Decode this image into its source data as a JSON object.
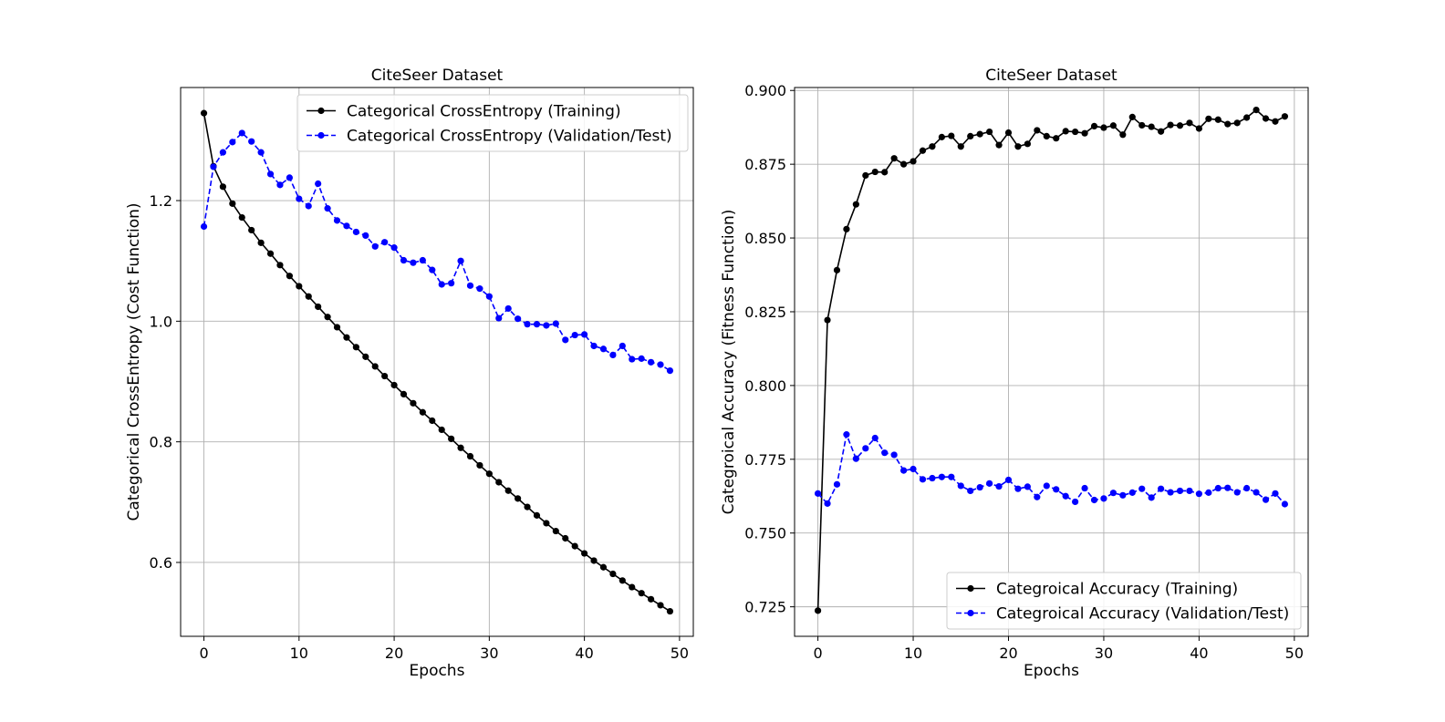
{
  "chart_data": [
    {
      "type": "line",
      "title": "CiteSeer Dataset",
      "xlabel": "Epochs",
      "ylabel": "Categorical CrossEntropy (Cost Function)",
      "xlim": [
        -2.45,
        51.45
      ],
      "ylim": [
        0.4775,
        1.3875
      ],
      "xticks": [
        0,
        10,
        20,
        30,
        40,
        50
      ],
      "yticks": [
        0.6,
        0.8,
        1.0,
        1.2
      ],
      "grid": true,
      "legend_position": "upper right",
      "series": [
        {
          "name": "Categorical CrossEntropy (Training)",
          "color": "#000000",
          "linestyle": "solid",
          "marker": "circle",
          "x": [
            0,
            1,
            2,
            3,
            4,
            5,
            6,
            7,
            8,
            9,
            10,
            11,
            12,
            13,
            14,
            15,
            16,
            17,
            18,
            19,
            20,
            21,
            22,
            23,
            24,
            25,
            26,
            27,
            28,
            29,
            30,
            31,
            32,
            33,
            34,
            35,
            36,
            37,
            38,
            39,
            40,
            41,
            42,
            43,
            44,
            45,
            46,
            47,
            48,
            49
          ],
          "y": [
            1.345,
            1.257,
            1.223,
            1.195,
            1.172,
            1.151,
            1.13,
            1.112,
            1.093,
            1.075,
            1.058,
            1.041,
            1.024,
            1.007,
            0.99,
            0.973,
            0.957,
            0.941,
            0.925,
            0.909,
            0.894,
            0.879,
            0.864,
            0.849,
            0.835,
            0.82,
            0.805,
            0.79,
            0.776,
            0.761,
            0.747,
            0.733,
            0.719,
            0.706,
            0.692,
            0.678,
            0.665,
            0.652,
            0.64,
            0.627,
            0.615,
            0.603,
            0.592,
            0.581,
            0.57,
            0.559,
            0.549,
            0.539,
            0.529,
            0.519
          ]
        },
        {
          "name": "Categorical CrossEntropy (Validation/Test)",
          "color": "#0000ff",
          "linestyle": "dashed",
          "marker": "circle",
          "x": [
            0,
            1,
            2,
            3,
            4,
            5,
            6,
            7,
            8,
            9,
            10,
            11,
            12,
            13,
            14,
            15,
            16,
            17,
            18,
            19,
            20,
            21,
            22,
            23,
            24,
            25,
            26,
            27,
            28,
            29,
            30,
            31,
            32,
            33,
            34,
            35,
            36,
            37,
            38,
            39,
            40,
            41,
            42,
            43,
            44,
            45,
            46,
            47,
            48,
            49
          ],
          "y": [
            1.157,
            1.256,
            1.28,
            1.297,
            1.312,
            1.298,
            1.28,
            1.244,
            1.226,
            1.238,
            1.203,
            1.191,
            1.228,
            1.187,
            1.167,
            1.158,
            1.148,
            1.142,
            1.124,
            1.131,
            1.122,
            1.101,
            1.097,
            1.101,
            1.085,
            1.061,
            1.063,
            1.1,
            1.059,
            1.054,
            1.041,
            1.005,
            1.021,
            1.004,
            0.995,
            0.995,
            0.993,
            0.996,
            0.969,
            0.977,
            0.978,
            0.959,
            0.954,
            0.944,
            0.959,
            0.937,
            0.938,
            0.932,
            0.928,
            0.918
          ]
        }
      ]
    },
    {
      "type": "line",
      "title": "CiteSeer Dataset",
      "xlabel": "Epochs",
      "ylabel": "Categroical Accuracy (Fitness Function)",
      "xlim": [
        -2.45,
        51.45
      ],
      "ylim": [
        0.715,
        0.901
      ],
      "xticks": [
        0,
        10,
        20,
        30,
        40,
        50
      ],
      "yticks": [
        0.725,
        0.75,
        0.775,
        0.8,
        0.825,
        0.85,
        0.875,
        0.9
      ],
      "grid": true,
      "legend_position": "lower right",
      "series": [
        {
          "name": "Categroical Accuracy (Training)",
          "color": "#000000",
          "linestyle": "solid",
          "marker": "circle",
          "x": [
            0,
            1,
            2,
            3,
            4,
            5,
            6,
            7,
            8,
            9,
            10,
            11,
            12,
            13,
            14,
            15,
            16,
            17,
            18,
            19,
            20,
            21,
            22,
            23,
            24,
            25,
            26,
            27,
            28,
            29,
            30,
            31,
            32,
            33,
            34,
            35,
            36,
            37,
            38,
            39,
            40,
            41,
            42,
            43,
            44,
            45,
            46,
            47,
            48,
            49
          ],
          "y": [
            0.7237,
            0.8222,
            0.8391,
            0.853,
            0.8614,
            0.8712,
            0.8724,
            0.8723,
            0.877,
            0.875,
            0.876,
            0.8796,
            0.881,
            0.8842,
            0.8846,
            0.881,
            0.8845,
            0.8852,
            0.886,
            0.8815,
            0.8857,
            0.881,
            0.8819,
            0.8865,
            0.8845,
            0.8838,
            0.8862,
            0.886,
            0.8855,
            0.8879,
            0.8874,
            0.8881,
            0.885,
            0.891,
            0.8882,
            0.8877,
            0.8861,
            0.8883,
            0.8881,
            0.889,
            0.8871,
            0.8904,
            0.8901,
            0.8886,
            0.889,
            0.8908,
            0.8934,
            0.8905,
            0.8895,
            0.8912
          ]
        },
        {
          "name": "Categroical Accuracy (Validation/Test)",
          "color": "#0000ff",
          "linestyle": "dashed",
          "marker": "circle",
          "x": [
            0,
            1,
            2,
            3,
            4,
            5,
            6,
            7,
            8,
            9,
            10,
            11,
            12,
            13,
            14,
            15,
            16,
            17,
            18,
            19,
            20,
            21,
            22,
            23,
            24,
            25,
            26,
            27,
            28,
            29,
            30,
            31,
            32,
            33,
            34,
            35,
            36,
            37,
            38,
            39,
            40,
            41,
            42,
            43,
            44,
            45,
            46,
            47,
            48,
            49
          ],
          "y": [
            0.7634,
            0.76,
            0.7665,
            0.7834,
            0.7752,
            0.7787,
            0.7822,
            0.7772,
            0.7765,
            0.7712,
            0.7717,
            0.7682,
            0.7686,
            0.769,
            0.769,
            0.766,
            0.7643,
            0.7655,
            0.7668,
            0.7658,
            0.768,
            0.765,
            0.7657,
            0.7622,
            0.766,
            0.7648,
            0.7625,
            0.7606,
            0.7652,
            0.7612,
            0.7617,
            0.7636,
            0.7628,
            0.7637,
            0.765,
            0.762,
            0.765,
            0.7638,
            0.7643,
            0.7643,
            0.7633,
            0.7637,
            0.7652,
            0.7653,
            0.7638,
            0.7652,
            0.7638,
            0.7613,
            0.7634,
            0.7598
          ]
        }
      ]
    }
  ]
}
